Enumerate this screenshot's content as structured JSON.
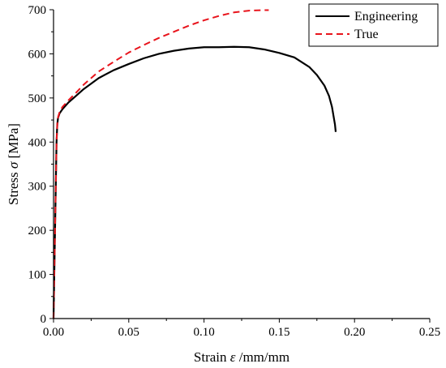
{
  "chart_data": {
    "type": "line",
    "title": "",
    "xlabel_prefix": "Strain ",
    "xlabel_symbol": "ε",
    "xlabel_suffix": " /mm/mm",
    "ylabel_prefix": "Stress ",
    "ylabel_symbol": "σ",
    "ylabel_suffix": " [MPa]",
    "xlim": [
      0,
      0.25
    ],
    "ylim": [
      0,
      700
    ],
    "xticks": [
      "0.00",
      "0.05",
      "0.10",
      "0.15",
      "0.20",
      "0.25"
    ],
    "yticks": [
      "0",
      "100",
      "200",
      "300",
      "400",
      "500",
      "600",
      "700"
    ],
    "grid": false,
    "legend_position": "top-right",
    "series": [
      {
        "name": "Engineering",
        "color": "#000000",
        "style": "solid",
        "x": [
          0,
          0.0005,
          0.001,
          0.0015,
          0.002,
          0.0025,
          0.003,
          0.004,
          0.006,
          0.01,
          0.015,
          0.02,
          0.03,
          0.04,
          0.05,
          0.06,
          0.07,
          0.08,
          0.09,
          0.1,
          0.11,
          0.12,
          0.13,
          0.14,
          0.15,
          0.16,
          0.17,
          0.175,
          0.18,
          0.183,
          0.185,
          0.186,
          0.187,
          0.1875
        ],
        "y": [
          0,
          100,
          200,
          300,
          400,
          440,
          455,
          465,
          475,
          490,
          505,
          520,
          545,
          563,
          577,
          590,
          600,
          607,
          612,
          615,
          615,
          616,
          615,
          610,
          602,
          592,
          570,
          552,
          528,
          505,
          480,
          460,
          440,
          423
        ]
      },
      {
        "name": "True",
        "color": "#e8141c",
        "style": "dashed",
        "x": [
          0,
          0.0005,
          0.001,
          0.0015,
          0.002,
          0.0025,
          0.003,
          0.004,
          0.006,
          0.01,
          0.015,
          0.02,
          0.03,
          0.04,
          0.05,
          0.06,
          0.07,
          0.08,
          0.09,
          0.1,
          0.11,
          0.12,
          0.13,
          0.14,
          0.143
        ],
        "y": [
          0,
          100,
          200,
          300,
          400,
          440,
          456,
          468,
          480,
          495,
          512,
          530,
          560,
          582,
          603,
          620,
          636,
          650,
          664,
          676,
          686,
          694,
          698,
          699,
          699
        ]
      }
    ]
  }
}
